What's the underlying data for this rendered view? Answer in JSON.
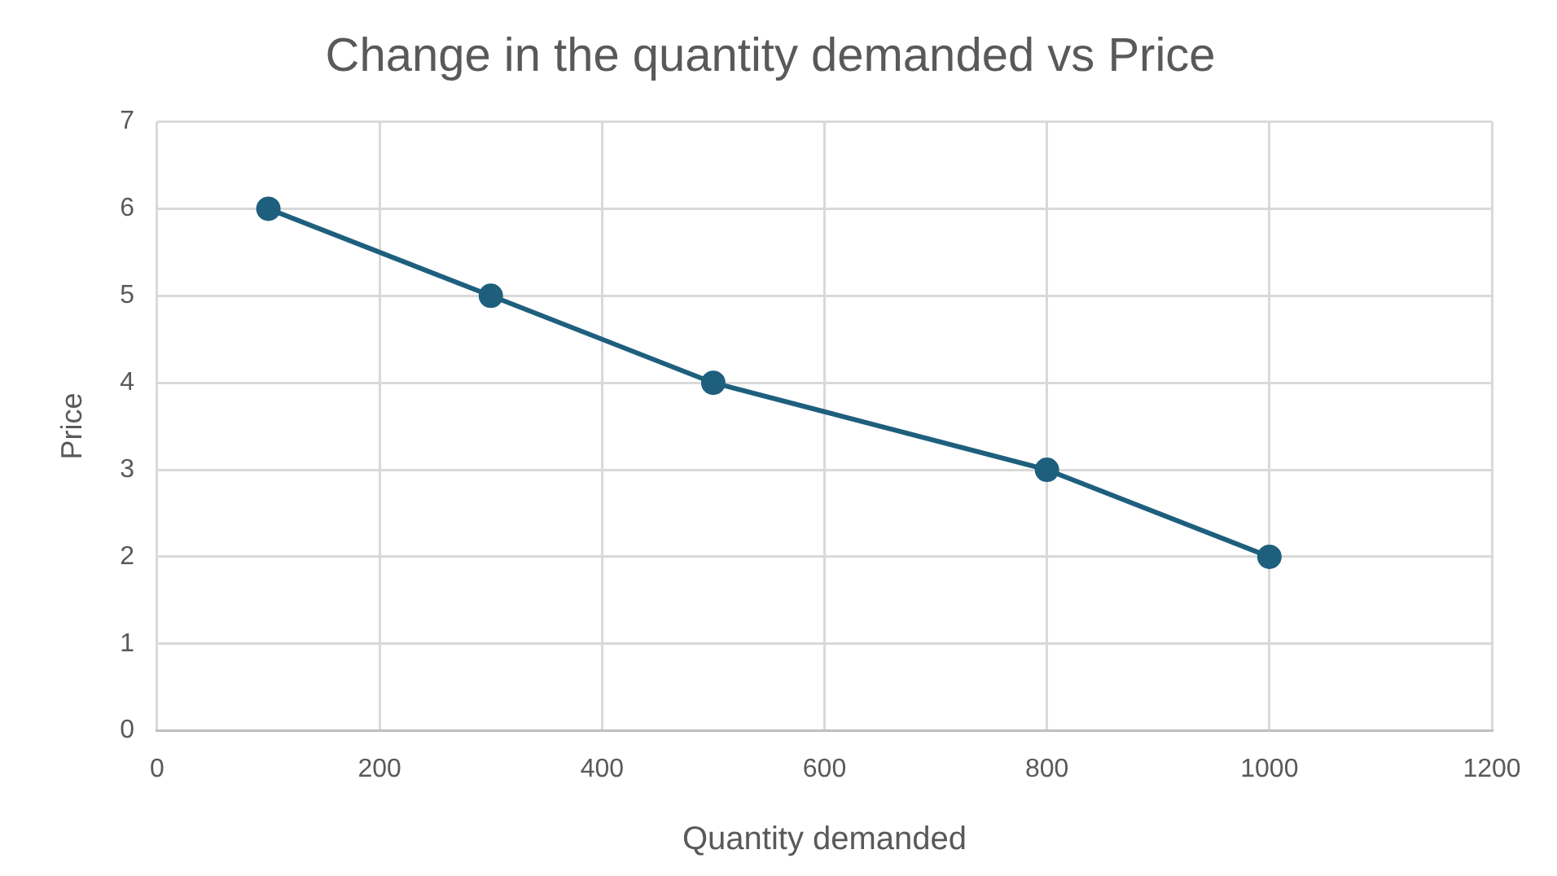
{
  "chart_data": {
    "type": "line",
    "title": "Change in the quantity demanded vs Price",
    "xlabel": "Quantity demanded",
    "ylabel": "Price",
    "x": [
      100,
      300,
      500,
      800,
      1000
    ],
    "series": [
      {
        "color": "#1f5f7e",
        "values": [
          6,
          5,
          4,
          3,
          2
        ]
      }
    ],
    "xlim": [
      0,
      1200
    ],
    "xticks": [
      0,
      200,
      400,
      600,
      800,
      1000,
      1200
    ],
    "ylim": [
      0,
      7
    ],
    "yticks": [
      0,
      1,
      2,
      3,
      4,
      5,
      6,
      7
    ],
    "grid": true,
    "legend": false,
    "marker": "circle",
    "line_style": "solid"
  }
}
